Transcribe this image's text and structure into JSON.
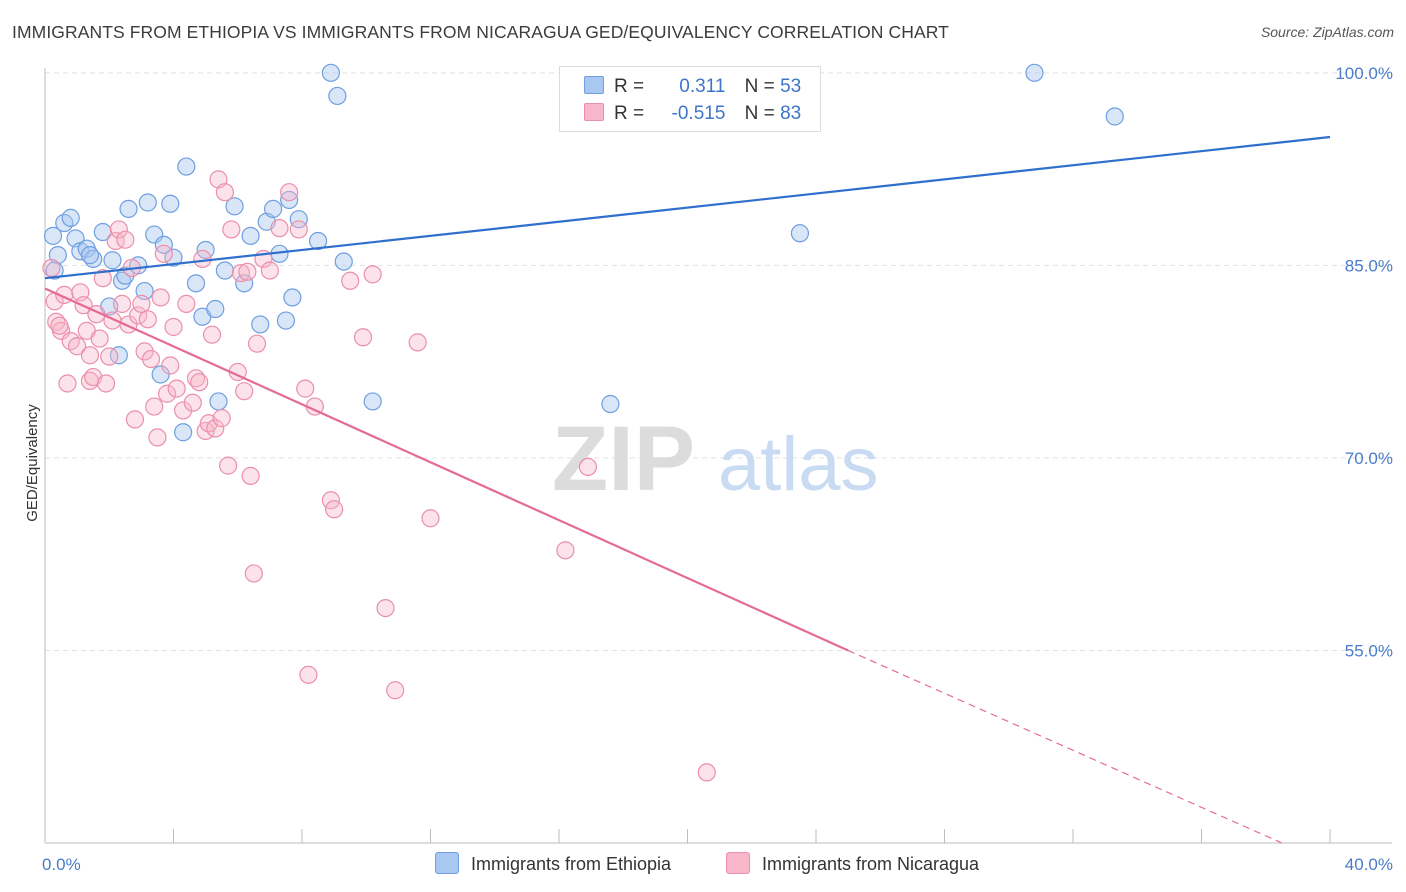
{
  "title": "IMMIGRANTS FROM ETHIOPIA VS IMMIGRANTS FROM NICARAGUA GED/EQUIVALENCY CORRELATION CHART",
  "source": "Source: ZipAtlas.com",
  "watermark": {
    "zip": "ZIP",
    "atlas": "atlas"
  },
  "legend": {
    "ethiopia": {
      "r_label": "R =",
      "r_value": "0.311",
      "n_label": "N =",
      "n_value": "53"
    },
    "nicaragua": {
      "r_label": "R =",
      "r_value": "-0.515",
      "n_label": "N =",
      "n_value": "83"
    }
  },
  "colors": {
    "ethiopia_fill": "#a9c8f0",
    "ethiopia_stroke": "#6f9fe0",
    "ethiopia_line": "#2f6fcd",
    "nicaragua_fill": "#f7b6ca",
    "nicaragua_stroke": "#eb8fab",
    "nicaragua_line": "#e56b97"
  },
  "chart_data": {
    "type": "scatter",
    "title": "IMMIGRANTS FROM ETHIOPIA VS IMMIGRANTS FROM NICARAGUA GED/EQUIVALENCY CORRELATION CHART",
    "xlabel": "",
    "ylabel": "GED/Equivalency",
    "xlim": [
      0,
      40
    ],
    "ylim": [
      40,
      101
    ],
    "x_ticks": [
      "0.0%",
      "40.0%"
    ],
    "y_ticks": [
      {
        "value": 100,
        "label": "100.0%"
      },
      {
        "value": 85,
        "label": "85.0%"
      },
      {
        "value": 70,
        "label": "70.0%"
      },
      {
        "value": 55,
        "label": "55.0%"
      }
    ],
    "grid": true,
    "legend_position": "bottom",
    "series": [
      {
        "name": "Immigrants from Ethiopia",
        "points": [
          [
            0.25,
            87.3
          ],
          [
            0.4,
            85.8
          ],
          [
            0.3,
            84.6
          ],
          [
            0.6,
            88.3
          ],
          [
            0.8,
            88.7
          ],
          [
            0.95,
            87.1
          ],
          [
            1.1,
            86.1
          ],
          [
            1.3,
            86.3
          ],
          [
            1.5,
            85.5
          ],
          [
            1.4,
            85.8
          ],
          [
            1.8,
            87.6
          ],
          [
            2.1,
            85.4
          ],
          [
            2.4,
            83.8
          ],
          [
            2.5,
            84.2
          ],
          [
            2.6,
            89.4
          ],
          [
            2.9,
            85.0
          ],
          [
            3.1,
            83.0
          ],
          [
            3.2,
            89.9
          ],
          [
            3.4,
            87.4
          ],
          [
            3.7,
            86.6
          ],
          [
            3.9,
            89.8
          ],
          [
            4.0,
            85.6
          ],
          [
            4.4,
            92.7
          ],
          [
            4.7,
            83.6
          ],
          [
            4.9,
            81.0
          ],
          [
            5.0,
            86.2
          ],
          [
            5.3,
            81.6
          ],
          [
            5.6,
            84.6
          ],
          [
            5.9,
            89.6
          ],
          [
            6.2,
            83.6
          ],
          [
            6.4,
            87.3
          ],
          [
            6.7,
            80.4
          ],
          [
            6.9,
            88.4
          ],
          [
            7.1,
            89.4
          ],
          [
            7.3,
            85.9
          ],
          [
            7.5,
            80.7
          ],
          [
            7.6,
            90.1
          ],
          [
            7.7,
            82.5
          ],
          [
            7.9,
            88.6
          ],
          [
            8.5,
            86.9
          ],
          [
            8.9,
            100.0
          ],
          [
            9.1,
            98.2
          ],
          [
            9.3,
            85.3
          ],
          [
            2.0,
            81.8
          ],
          [
            2.3,
            78.0
          ],
          [
            3.6,
            76.5
          ],
          [
            4.3,
            72.0
          ],
          [
            5.4,
            74.4
          ],
          [
            10.2,
            74.4
          ],
          [
            17.6,
            74.2
          ],
          [
            23.5,
            87.5
          ],
          [
            30.8,
            100.0
          ],
          [
            33.3,
            96.6
          ]
        ]
      },
      {
        "name": "Immigrants from Nicaragua",
        "points": [
          [
            0.2,
            84.8
          ],
          [
            0.3,
            82.2
          ],
          [
            0.35,
            80.6
          ],
          [
            0.5,
            79.9
          ],
          [
            0.6,
            82.7
          ],
          [
            0.7,
            75.8
          ],
          [
            0.8,
            79.1
          ],
          [
            1.0,
            78.7
          ],
          [
            1.1,
            82.9
          ],
          [
            1.2,
            81.9
          ],
          [
            1.3,
            79.9
          ],
          [
            1.4,
            78.0
          ],
          [
            1.4,
            76.0
          ],
          [
            1.5,
            76.3
          ],
          [
            1.6,
            81.2
          ],
          [
            1.7,
            79.3
          ],
          [
            1.8,
            84.0
          ],
          [
            1.9,
            75.8
          ],
          [
            2.0,
            77.9
          ],
          [
            2.1,
            80.7
          ],
          [
            2.2,
            86.9
          ],
          [
            2.3,
            87.8
          ],
          [
            2.4,
            82.0
          ],
          [
            2.5,
            87.0
          ],
          [
            2.6,
            80.4
          ],
          [
            2.7,
            84.8
          ],
          [
            2.8,
            73.0
          ],
          [
            2.9,
            81.1
          ],
          [
            3.0,
            82.0
          ],
          [
            3.1,
            78.3
          ],
          [
            3.2,
            80.8
          ],
          [
            3.3,
            77.7
          ],
          [
            3.4,
            74.0
          ],
          [
            3.5,
            71.6
          ],
          [
            3.6,
            82.5
          ],
          [
            3.7,
            85.9
          ],
          [
            3.8,
            75.0
          ],
          [
            3.9,
            77.2
          ],
          [
            4.0,
            80.2
          ],
          [
            4.1,
            75.4
          ],
          [
            4.3,
            73.7
          ],
          [
            4.4,
            82.0
          ],
          [
            4.6,
            74.3
          ],
          [
            4.7,
            76.2
          ],
          [
            4.8,
            75.9
          ],
          [
            4.9,
            85.5
          ],
          [
            5.0,
            72.1
          ],
          [
            5.1,
            72.7
          ],
          [
            5.2,
            79.6
          ],
          [
            5.3,
            72.3
          ],
          [
            5.4,
            91.7
          ],
          [
            5.5,
            73.1
          ],
          [
            5.6,
            90.7
          ],
          [
            5.7,
            69.4
          ],
          [
            5.8,
            87.8
          ],
          [
            6.0,
            76.7
          ],
          [
            6.1,
            84.4
          ],
          [
            6.2,
            75.2
          ],
          [
            6.4,
            68.6
          ],
          [
            6.5,
            61.0
          ],
          [
            6.6,
            78.9
          ],
          [
            6.8,
            85.5
          ],
          [
            7.0,
            84.6
          ],
          [
            7.3,
            87.9
          ],
          [
            7.6,
            90.7
          ],
          [
            7.9,
            87.8
          ],
          [
            8.1,
            75.4
          ],
          [
            8.4,
            74.0
          ],
          [
            8.9,
            66.7
          ],
          [
            9.0,
            66.0
          ],
          [
            9.5,
            83.8
          ],
          [
            9.9,
            79.4
          ],
          [
            10.2,
            84.3
          ],
          [
            10.6,
            58.3
          ],
          [
            10.9,
            51.9
          ],
          [
            11.6,
            79.0
          ],
          [
            12.0,
            65.3
          ],
          [
            8.2,
            53.1
          ],
          [
            16.2,
            62.8
          ],
          [
            16.9,
            69.3
          ],
          [
            20.6,
            45.5
          ],
          [
            0.45,
            80.3
          ],
          [
            6.3,
            84.5
          ]
        ]
      }
    ],
    "trend_lines": [
      {
        "series": "Immigrants from Ethiopia",
        "x": [
          0,
          40
        ],
        "y": [
          84.0,
          95.0
        ],
        "style": "solid"
      },
      {
        "series": "Immigrants from Nicaragua",
        "x": [
          0,
          25
        ],
        "y": [
          83.2,
          55.0
        ],
        "style": "solid"
      },
      {
        "series": "Immigrants from Nicaragua",
        "x": [
          25,
          38.5
        ],
        "y": [
          55.0,
          40.0
        ],
        "style": "dashed"
      }
    ]
  }
}
